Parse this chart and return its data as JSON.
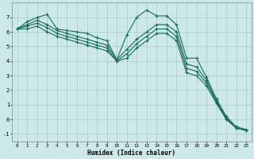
{
  "xlabel": "Humidex (Indice chaleur)",
  "bg_color": "#cce8e8",
  "grid_color": "#aacccc",
  "line_color": "#1a6b5a",
  "xlim": [
    -0.5,
    23.5
  ],
  "ylim": [
    -1.5,
    8.0
  ],
  "xticks": [
    0,
    1,
    2,
    3,
    4,
    5,
    6,
    7,
    8,
    9,
    10,
    11,
    12,
    13,
    14,
    15,
    16,
    17,
    18,
    19,
    20,
    21,
    22,
    23
  ],
  "yticks": [
    -1,
    0,
    1,
    2,
    3,
    4,
    5,
    6,
    7
  ],
  "series": [
    [
      6.2,
      6.7,
      7.0,
      7.2,
      6.2,
      6.1,
      6.0,
      5.9,
      5.6,
      5.4,
      4.1,
      5.8,
      7.0,
      7.5,
      7.1,
      7.1,
      6.5,
      4.2,
      4.2,
      2.9,
      1.4,
      0.2,
      -0.5,
      -0.7
    ],
    [
      6.2,
      6.5,
      6.8,
      6.5,
      6.1,
      5.9,
      5.7,
      5.5,
      5.3,
      5.1,
      4.1,
      4.8,
      5.5,
      6.0,
      6.5,
      6.5,
      6.0,
      3.8,
      3.6,
      2.7,
      1.3,
      0.1,
      -0.6,
      -0.75
    ],
    [
      6.2,
      6.4,
      6.6,
      6.3,
      5.9,
      5.7,
      5.5,
      5.3,
      5.1,
      4.9,
      4.0,
      4.5,
      5.2,
      5.7,
      6.2,
      6.2,
      5.7,
      3.5,
      3.3,
      2.5,
      1.2,
      0.0,
      -0.6,
      -0.75
    ],
    [
      6.2,
      6.2,
      6.4,
      6.0,
      5.7,
      5.5,
      5.3,
      5.1,
      4.9,
      4.7,
      4.0,
      4.2,
      4.9,
      5.4,
      5.9,
      5.9,
      5.4,
      3.2,
      3.0,
      2.3,
      1.1,
      0.0,
      -0.6,
      -0.75
    ]
  ]
}
